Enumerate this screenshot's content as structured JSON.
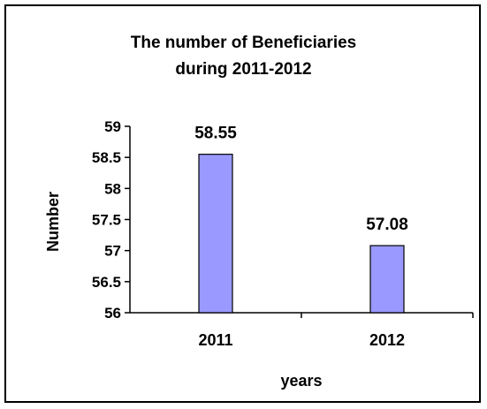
{
  "chart_data": {
    "type": "bar",
    "title_line1": "The number of Beneficiaries",
    "title_line2": "during 2011-2012",
    "categories": [
      "2011",
      "2012"
    ],
    "values": [
      58.55,
      57.08
    ],
    "value_labels": [
      "58.55",
      "57.08"
    ],
    "xlabel": "years",
    "ylabel": "Number",
    "ylim": [
      56,
      59
    ],
    "yticks": [
      "59",
      "58.5",
      "58",
      "57.5",
      "57",
      "56.5",
      "56"
    ],
    "bar_color": "#9999ff",
    "grid": false,
    "legend": "none"
  }
}
